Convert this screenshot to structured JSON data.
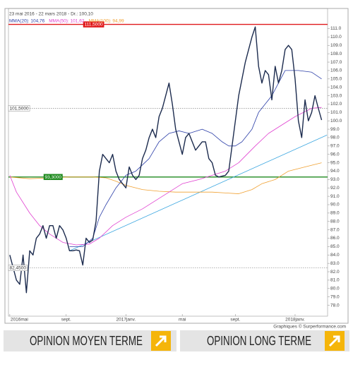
{
  "chart_data": {
    "type": "line",
    "title": "23 mai 2016 - 22 mars 2018 - Dr.: 100,10",
    "xlim": [
      -0.4,
      95.8
    ],
    "ylim": [
      76.7,
      113.4
    ],
    "xticks": [
      {
        "value": 0,
        "label": "2016mai"
      },
      {
        "value": 17,
        "label": "sept."
      },
      {
        "value": 35,
        "label": "2017janv."
      },
      {
        "value": 52,
        "label": "mai"
      },
      {
        "value": 68,
        "label": "sept."
      },
      {
        "value": 86,
        "label": "2018janv."
      }
    ],
    "yticks": [
      {
        "value": 78,
        "label": "78.0"
      },
      {
        "value": 79,
        "label": "79.0"
      },
      {
        "value": 80,
        "label": "80.0"
      },
      {
        "value": 81,
        "label": "81.0"
      },
      {
        "value": 82,
        "label": "82.0"
      },
      {
        "value": 83,
        "label": "83.0"
      },
      {
        "value": 84,
        "label": "84.0"
      },
      {
        "value": 85,
        "label": "85.0"
      },
      {
        "value": 86,
        "label": "86.0"
      },
      {
        "value": 87,
        "label": "87.0"
      },
      {
        "value": 88,
        "label": "88.0"
      },
      {
        "value": 89,
        "label": "89.0"
      },
      {
        "value": 90,
        "label": "90.0"
      },
      {
        "value": 91,
        "label": "91.0"
      },
      {
        "value": 92,
        "label": "92.0"
      },
      {
        "value": 93,
        "label": "93.0"
      },
      {
        "value": 94,
        "label": "94.0"
      },
      {
        "value": 95,
        "label": "95.0"
      },
      {
        "value": 96,
        "label": "96.0"
      },
      {
        "value": 97,
        "label": "97.0"
      },
      {
        "value": 98,
        "label": "98.0"
      },
      {
        "value": 99,
        "label": "99.0"
      },
      {
        "value": 100,
        "label": "100.0"
      },
      {
        "value": 101,
        "label": "101.0"
      },
      {
        "value": 102,
        "label": "102.0"
      },
      {
        "value": 103,
        "label": "103.0"
      },
      {
        "value": 104,
        "label": "104.0"
      },
      {
        "value": 105,
        "label": "105.0"
      },
      {
        "value": 106,
        "label": "106.0"
      },
      {
        "value": 107,
        "label": "107.0"
      },
      {
        "value": 108,
        "label": "108.0"
      },
      {
        "value": 109,
        "label": "109.0"
      },
      {
        "value": 110,
        "label": "110.0"
      },
      {
        "value": 111,
        "label": "111.0"
      }
    ],
    "series": [
      {
        "color": "#1c2b4e",
        "x": [
          0,
          1,
          2,
          3,
          4,
          5,
          6,
          7,
          8,
          9,
          10,
          11,
          12,
          13,
          14,
          15,
          16,
          17,
          18,
          19,
          20,
          21,
          22,
          23,
          24,
          25,
          26,
          27,
          28,
          29,
          30,
          31,
          32,
          33,
          34,
          35,
          36,
          37,
          38,
          39,
          40,
          41,
          42,
          43,
          44,
          45,
          46,
          47,
          48,
          49,
          50,
          51,
          52,
          53,
          54,
          55,
          56,
          57,
          58,
          59,
          60,
          61,
          62,
          63,
          64,
          65,
          66,
          67,
          68,
          69,
          70,
          71,
          72,
          73,
          74,
          75,
          76,
          77,
          78,
          79,
          80,
          81,
          82,
          83,
          84,
          85,
          86,
          87,
          88,
          89,
          90,
          91,
          92,
          93,
          94
        ],
        "values": [
          84,
          82.5,
          81,
          80.5,
          84,
          79.5,
          84.5,
          84,
          86,
          86.5,
          87.5,
          86,
          87.5,
          87.5,
          86,
          87.5,
          87,
          86,
          84.5,
          84.5,
          84.6,
          84.5,
          82.8,
          86,
          85.5,
          85.8,
          88,
          94,
          96,
          95.5,
          95,
          96,
          94,
          93,
          92.5,
          92,
          94.5,
          93.5,
          93,
          93.5,
          95.5,
          96.5,
          98,
          99,
          98,
          100.5,
          101.5,
          103,
          104.5,
          102,
          99,
          97.5,
          96,
          98,
          98.5,
          97.5,
          96.5,
          97,
          97.5,
          97.5,
          95.5,
          95,
          93.5,
          93.3,
          93.4,
          93.5,
          94,
          97,
          100,
          103,
          105,
          107,
          108.5,
          110,
          111.2,
          106.5,
          104.5,
          106,
          105.5,
          102.5,
          106.5,
          104.5,
          106,
          108.5,
          109,
          108.5,
          105,
          100,
          98,
          102.5,
          100,
          101,
          103,
          101.5,
          100.1
        ]
      },
      {
        "name": "MMA(20): 104,76",
        "color": "#2c3fa8",
        "x": [
          18,
          22,
          25,
          27,
          29,
          32,
          35,
          38,
          42,
          45,
          48,
          51,
          54,
          58,
          61,
          64,
          66,
          68,
          70,
          73,
          75,
          77,
          79,
          81,
          83,
          85,
          87,
          91,
          94
        ],
        "values": [
          85,
          85,
          86,
          88.5,
          90,
          92,
          93.5,
          94,
          95.5,
          97.5,
          98.5,
          98.8,
          98.5,
          99,
          98.5,
          97.5,
          97,
          97,
          97.5,
          99,
          101,
          102,
          103,
          104.5,
          106,
          106,
          106,
          105.8,
          105
        ]
      },
      {
        "name": "MMA(50): 101,62",
        "color": "#e040d0",
        "x": [
          0,
          2,
          6,
          9,
          12,
          16,
          20,
          24,
          27,
          31,
          35,
          40,
          44,
          48,
          52,
          57,
          61,
          65,
          69,
          74,
          78,
          82,
          86,
          91,
          94
        ],
        "values": [
          93.5,
          91.5,
          89,
          87.5,
          86.5,
          85.5,
          85.2,
          85.3,
          86,
          87.5,
          88.5,
          89.5,
          90.5,
          91.5,
          92.5,
          93,
          93.5,
          94,
          95,
          97,
          98.5,
          99.5,
          100.5,
          101.5,
          101.6
        ]
      },
      {
        "name": "MMA(100): 94,99",
        "color": "#f0a030",
        "x": [
          0,
          6,
          12,
          18,
          25,
          29,
          32,
          35,
          40,
          45,
          50,
          57,
          61,
          65,
          69,
          73,
          76,
          80,
          84,
          89,
          94
        ],
        "values": [
          93.3,
          93.1,
          93.2,
          93.3,
          93.3,
          93.2,
          92.8,
          92.3,
          91.8,
          91.6,
          91.5,
          91.5,
          91.5,
          91.4,
          91.3,
          91.8,
          92.5,
          93,
          94,
          94.5,
          95
        ]
      }
    ],
    "trendline": {
      "color": "#3aa6e0",
      "x": [
        18,
        95.6
      ],
      "values": [
        84.5,
        98.3
      ]
    },
    "levels": [
      {
        "value": 111.5,
        "label": "111,5000",
        "color": "#e0191b",
        "style": "solid"
      },
      {
        "value": 101.5,
        "label": "101,5000",
        "color": "#888888",
        "style": "dotted"
      },
      {
        "value": 93.3,
        "label": "93,3000",
        "color": "#1e8a1e",
        "style": "solid"
      },
      {
        "value": 82.45,
        "label": "82,4500",
        "color": "#888888",
        "style": "dotted"
      }
    ],
    "credit": "Graphiques © Surperformance.com"
  },
  "footer": {
    "opinions": [
      {
        "label": "OPINION MOYEN TERME"
      },
      {
        "label": "OPINION LONG TERME"
      }
    ]
  }
}
